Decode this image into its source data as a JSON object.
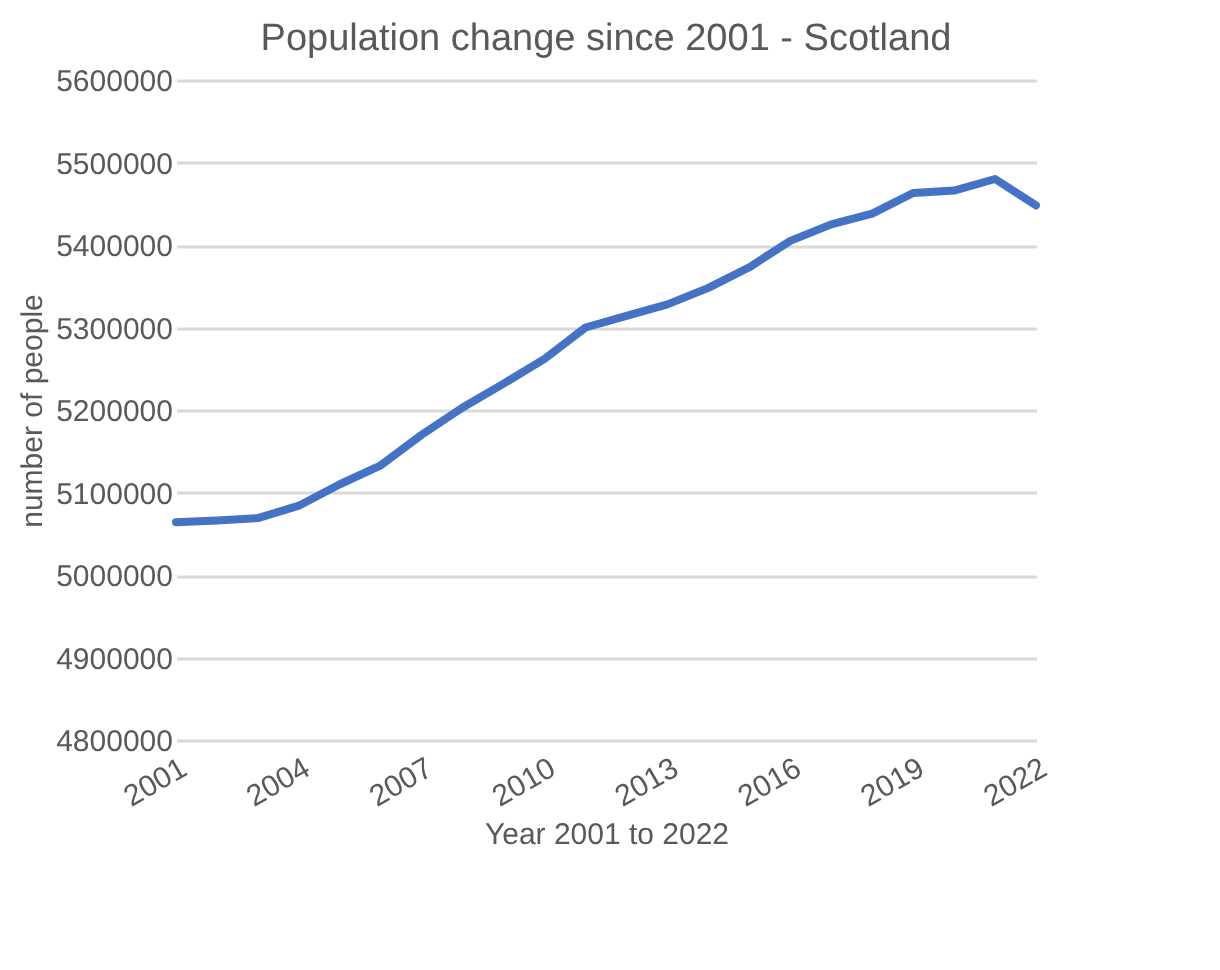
{
  "chart_data": {
    "type": "line",
    "title": "Population change since 2001 - Scotland",
    "xlabel": "Year 2001 to 2022",
    "ylabel": "number of people",
    "x": [
      2001,
      2002,
      2003,
      2004,
      2005,
      2006,
      2007,
      2008,
      2009,
      2010,
      2011,
      2012,
      2013,
      2014,
      2015,
      2016,
      2017,
      2018,
      2019,
      2020,
      2021,
      2022
    ],
    "series": [
      {
        "color": "#4472c4",
        "values": [
          5064000,
          5066000,
          5069000,
          5084000,
          5110000,
          5133000,
          5170000,
          5203000,
          5232000,
          5262000,
          5300000,
          5314000,
          5328000,
          5348000,
          5373000,
          5405000,
          5425000,
          5438000,
          5463000,
          5466000,
          5480000,
          5448000
        ]
      }
    ],
    "xlim": [
      2001,
      2022
    ],
    "xticks": [
      2001,
      2004,
      2007,
      2010,
      2013,
      2016,
      2019,
      2022
    ],
    "ylim": [
      4800000,
      5600000
    ],
    "yticks": [
      4800000,
      4900000,
      5000000,
      5100000,
      5200000,
      5300000,
      5400000,
      5500000,
      5600000
    ],
    "grid": "y",
    "marker": "none",
    "line_style": "solid"
  }
}
